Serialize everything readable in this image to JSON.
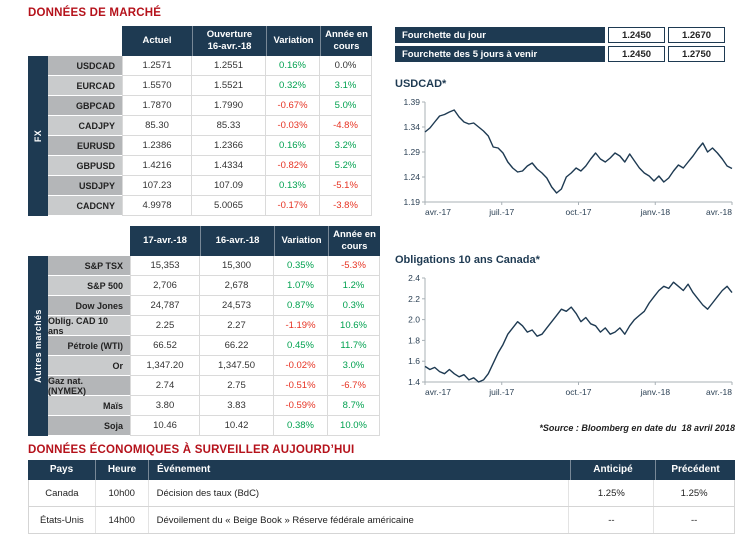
{
  "titles": {
    "market": "DONNÉES DE MARCHÉ",
    "econ": "DONNÉES ÉCONOMIQUES À SURVEILLER AUJOURD’HUI",
    "source_note": "*Source : Bloomberg en date du  18 avril 2018"
  },
  "colors": {
    "navy": "#1e3a52",
    "title_red": "#b5121b",
    "positive": "#00a14f",
    "negative": "#e63323",
    "label_gray": "#b4b6b8",
    "label_gray_alt": "#c9cbcc",
    "line": "#1e3a52"
  },
  "range_table": {
    "rows": [
      {
        "label": "Fourchette du jour",
        "low": "1.2450",
        "high": "1.2670"
      },
      {
        "label": "Fourchette des 5 jours à venir",
        "low": "1.2450",
        "high": "1.2750"
      }
    ]
  },
  "fx_table": {
    "group_label": "FX",
    "headers": [
      "Actuel",
      "Ouverture\n16-avr.-18",
      "Variation",
      "Année en\ncours"
    ],
    "rows": [
      {
        "label": "USDCAD",
        "actual": "1.2571",
        "open": "1.2551",
        "variation": "0.16%",
        "variation_dir": "pos",
        "ytd": "0.0%",
        "ytd_dir": "neu"
      },
      {
        "label": "EURCAD",
        "actual": "1.5570",
        "open": "1.5521",
        "variation": "0.32%",
        "variation_dir": "pos",
        "ytd": "3.1%",
        "ytd_dir": "pos"
      },
      {
        "label": "GBPCAD",
        "actual": "1.7870",
        "open": "1.7990",
        "variation": "-0.67%",
        "variation_dir": "neg",
        "ytd": "5.0%",
        "ytd_dir": "pos"
      },
      {
        "label": "CADJPY",
        "actual": "85.30",
        "open": "85.33",
        "variation": "-0.03%",
        "variation_dir": "neg",
        "ytd": "-4.8%",
        "ytd_dir": "neg"
      },
      {
        "label": "EURUSD",
        "actual": "1.2386",
        "open": "1.2366",
        "variation": "0.16%",
        "variation_dir": "pos",
        "ytd": "3.2%",
        "ytd_dir": "pos"
      },
      {
        "label": "GBPUSD",
        "actual": "1.4216",
        "open": "1.4334",
        "variation": "-0.82%",
        "variation_dir": "neg",
        "ytd": "5.2%",
        "ytd_dir": "pos"
      },
      {
        "label": "USDJPY",
        "actual": "107.23",
        "open": "107.09",
        "variation": "0.13%",
        "variation_dir": "pos",
        "ytd": "-5.1%",
        "ytd_dir": "neg"
      },
      {
        "label": "CADCNY",
        "actual": "4.9978",
        "open": "5.0065",
        "variation": "-0.17%",
        "variation_dir": "neg",
        "ytd": "-3.8%",
        "ytd_dir": "neg"
      }
    ]
  },
  "markets_table": {
    "group_label": "Autres marchés",
    "headers": [
      "17-avr.-18",
      "16-avr.-18",
      "Variation",
      "Année en\ncours"
    ],
    "rows": [
      {
        "label": "S&P TSX",
        "actual": "15,353",
        "open": "15,300",
        "variation": "0.35%",
        "variation_dir": "pos",
        "ytd": "-5.3%",
        "ytd_dir": "neg"
      },
      {
        "label": "S&P 500",
        "actual": "2,706",
        "open": "2,678",
        "variation": "1.07%",
        "variation_dir": "pos",
        "ytd": "1.2%",
        "ytd_dir": "pos"
      },
      {
        "label": "Dow Jones",
        "actual": "24,787",
        "open": "24,573",
        "variation": "0.87%",
        "variation_dir": "pos",
        "ytd": "0.3%",
        "ytd_dir": "pos"
      },
      {
        "label": "Oblig. CAD 10 ans",
        "actual": "2.25",
        "open": "2.27",
        "variation": "-1.19%",
        "variation_dir": "neg",
        "ytd": "10.6%",
        "ytd_dir": "pos"
      },
      {
        "label": "Pétrole (WTI)",
        "actual": "66.52",
        "open": "66.22",
        "variation": "0.45%",
        "variation_dir": "pos",
        "ytd": "11.7%",
        "ytd_dir": "pos"
      },
      {
        "label": "Or",
        "actual": "1,347.20",
        "open": "1,347.50",
        "variation": "-0.02%",
        "variation_dir": "neg",
        "ytd": "3.0%",
        "ytd_dir": "pos"
      },
      {
        "label": "Gaz nat. (NYMEX)",
        "actual": "2.74",
        "open": "2.75",
        "variation": "-0.51%",
        "variation_dir": "neg",
        "ytd": "-6.7%",
        "ytd_dir": "neg"
      },
      {
        "label": "Maïs",
        "actual": "3.80",
        "open": "3.83",
        "variation": "-0.59%",
        "variation_dir": "neg",
        "ytd": "8.7%",
        "ytd_dir": "pos"
      },
      {
        "label": "Soja",
        "actual": "10.46",
        "open": "10.42",
        "variation": "0.38%",
        "variation_dir": "pos",
        "ytd": "10.0%",
        "ytd_dir": "pos"
      }
    ]
  },
  "econ_table": {
    "headers": [
      "Pays",
      "Heure",
      "Événement",
      "Anticipé",
      "Précédent"
    ],
    "rows": [
      {
        "pays": "Canada",
        "heure": "10h00",
        "evenement": "Décision des taux (BdC)",
        "anticipe": "1.25%",
        "precedent": "1.25%"
      },
      {
        "pays": "États-Unis",
        "heure": "14h00",
        "evenement": "Dévoilement du « Beige Book » Réserve fédérale américaine",
        "anticipe": "--",
        "precedent": "--"
      }
    ]
  },
  "chart_data": [
    {
      "type": "line",
      "title": "USDCAD*",
      "xlabel": "",
      "ylabel": "",
      "ylim": [
        1.19,
        1.39
      ],
      "yticks": [
        1.19,
        1.24,
        1.29,
        1.34,
        1.39
      ],
      "ytick_decimals": 2,
      "x": [
        "avr.-17",
        "juil.-17",
        "oct.-17",
        "janv.-18",
        "avr.-18"
      ],
      "grid": false,
      "legend": "none",
      "line_color": "#1e3a52",
      "series": [
        {
          "name": "USDCAD",
          "values": [
            1.33,
            1.338,
            1.35,
            1.362,
            1.365,
            1.37,
            1.374,
            1.36,
            1.35,
            1.346,
            1.348,
            1.34,
            1.332,
            1.322,
            1.3,
            1.298,
            1.288,
            1.27,
            1.258,
            1.25,
            1.252,
            1.262,
            1.268,
            1.256,
            1.248,
            1.238,
            1.22,
            1.208,
            1.216,
            1.24,
            1.248,
            1.258,
            1.252,
            1.262,
            1.276,
            1.288,
            1.276,
            1.27,
            1.278,
            1.288,
            1.282,
            1.27,
            1.286,
            1.272,
            1.258,
            1.248,
            1.242,
            1.232,
            1.242,
            1.23,
            1.238,
            1.252,
            1.264,
            1.258,
            1.27,
            1.282,
            1.296,
            1.308,
            1.29,
            1.298,
            1.288,
            1.276,
            1.262,
            1.257
          ]
        }
      ]
    },
    {
      "type": "line",
      "title": "Obligations 10 ans Canada*",
      "xlabel": "",
      "ylabel": "",
      "ylim": [
        1.4,
        2.4
      ],
      "yticks": [
        1.4,
        1.6,
        1.8,
        2.0,
        2.2,
        2.4
      ],
      "ytick_decimals": 1,
      "x": [
        "avr.-17",
        "juil.-17",
        "oct.-17",
        "janv.-18",
        "avr.-18"
      ],
      "grid": false,
      "legend": "none",
      "line_color": "#1e3a52",
      "series": [
        {
          "name": "Rendement 10 ans Canada",
          "values": [
            1.55,
            1.52,
            1.54,
            1.5,
            1.48,
            1.52,
            1.48,
            1.45,
            1.47,
            1.42,
            1.44,
            1.4,
            1.42,
            1.48,
            1.58,
            1.68,
            1.76,
            1.86,
            1.92,
            1.98,
            1.94,
            1.88,
            1.9,
            1.84,
            1.86,
            1.92,
            1.98,
            2.04,
            2.1,
            2.08,
            2.12,
            2.06,
            1.98,
            2.02,
            1.96,
            1.94,
            1.88,
            1.92,
            1.86,
            1.88,
            1.92,
            1.86,
            1.94,
            2.0,
            2.04,
            2.08,
            2.16,
            2.22,
            2.28,
            2.32,
            2.3,
            2.36,
            2.32,
            2.28,
            2.34,
            2.26,
            2.2,
            2.14,
            2.1,
            2.16,
            2.22,
            2.28,
            2.32,
            2.26
          ]
        }
      ]
    }
  ]
}
